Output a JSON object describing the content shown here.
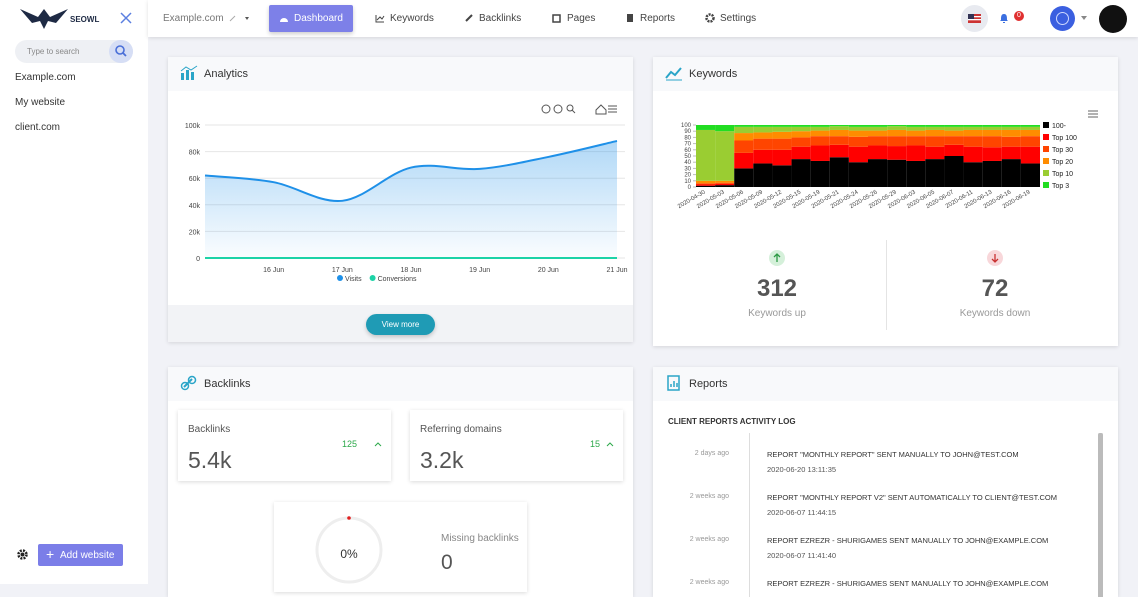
{
  "sidebar": {
    "brand": "SEOWL",
    "search_placeholder": "Type to search",
    "sites": [
      "Example.com",
      "My website",
      "client.com"
    ],
    "add_button": "Add website"
  },
  "nav": {
    "site": "Example.com",
    "items": [
      "Dashboard",
      "Keywords",
      "Backlinks",
      "Pages",
      "Reports",
      "Settings"
    ],
    "notifications": 0
  },
  "chart_data": [
    {
      "type": "line",
      "title": "Analytics",
      "categories": [
        null,
        "16 Jun",
        "17 Jun",
        "18 Jun",
        "19 Jun",
        "20 Jun",
        "21 Jun"
      ],
      "series": [
        {
          "name": "Visits",
          "color": "#1e90e8",
          "values": [
            62000,
            57000,
            43000,
            68000,
            67000,
            76000,
            88000
          ]
        },
        {
          "name": "Conversions",
          "color": "#1dd3a7",
          "values": [
            0,
            0,
            0,
            0,
            0,
            0,
            0
          ]
        }
      ],
      "ylim": [
        0,
        100000
      ],
      "yticks": [
        0,
        {
          "value": 20000,
          "label": "20k"
        },
        {
          "value": 40000,
          "label": "40k"
        },
        {
          "value": 60000,
          "label": "60k"
        },
        {
          "value": 80000,
          "label": "80k"
        },
        {
          "value": 100000,
          "label": "100k"
        }
      ],
      "grid": true,
      "legend": "bottom"
    },
    {
      "type": "bar",
      "stacked": true,
      "title": "Keywords",
      "categories": [
        "2020-04-30",
        "2020-05-03",
        "2020-05-06",
        "2020-05-09",
        "2020-05-12",
        "2020-05-15",
        "2020-05-19",
        "2020-05-21",
        "2020-05-24",
        "2020-05-26",
        "2020-05-29",
        "2020-06-03",
        "2020-06-05",
        "2020-06-07",
        "2020-06-11",
        "2020-06-13",
        "2020-06-16",
        "2020-06-19"
      ],
      "series": [
        {
          "name": "100-",
          "color": "#000000",
          "values": [
            2,
            3,
            30,
            38,
            35,
            45,
            42,
            48,
            40,
            45,
            44,
            42,
            45,
            50,
            40,
            42,
            45,
            38
          ]
        },
        {
          "name": "Top 100",
          "color": "#ff0000",
          "values": [
            2,
            2,
            25,
            22,
            25,
            20,
            25,
            20,
            25,
            22,
            22,
            25,
            20,
            18,
            25,
            22,
            20,
            27
          ]
        },
        {
          "name": "Top 30",
          "color": "#ff4500",
          "values": [
            2,
            2,
            20,
            18,
            18,
            15,
            15,
            14,
            16,
            15,
            16,
            15,
            17,
            14,
            17,
            18,
            16,
            17
          ]
        },
        {
          "name": "Top 20",
          "color": "#ff8c00",
          "values": [
            4,
            3,
            12,
            10,
            11,
            10,
            9,
            10,
            10,
            9,
            10,
            9,
            10,
            9,
            10,
            10,
            11,
            10
          ]
        },
        {
          "name": "Top 10",
          "color": "#9acd32",
          "values": [
            82,
            80,
            10,
            9,
            8,
            7,
            6,
            6,
            6,
            6,
            6,
            6,
            5,
            6,
            5,
            5,
            5,
            5
          ]
        },
        {
          "name": "Top 3",
          "color": "#22dd22",
          "values": [
            8,
            10,
            3,
            3,
            3,
            3,
            3,
            2,
            3,
            3,
            2,
            3,
            3,
            3,
            3,
            3,
            3,
            3
          ]
        }
      ],
      "ylim": [
        0,
        100
      ],
      "yticks": [
        0,
        10,
        20,
        30,
        40,
        50,
        60,
        70,
        80,
        90,
        100
      ],
      "legend": "right"
    }
  ],
  "analytics_footer": {
    "button": "View more"
  },
  "keywords_stats": {
    "up": {
      "value": 312,
      "label": "Keywords up"
    },
    "down": {
      "value": 72,
      "label": "Keywords down"
    }
  },
  "backlinks": {
    "title": "Backlinks",
    "stats": [
      {
        "label": "Backlinks",
        "value": "5.4k",
        "change": 125
      },
      {
        "label": "Referring domains",
        "value": "3.2k",
        "change": 15
      }
    ],
    "missing": {
      "percent": "0%",
      "label": "Missing backlinks",
      "value": 0
    }
  },
  "reports": {
    "title": "Reports",
    "subtitle": "CLIENT REPORTS ACTIVITY LOG",
    "entries": [
      {
        "time": "2 days ago",
        "text": "REPORT \"MONTHLY REPORT\" SENT MANUALLY TO JOHN@TEST.COM",
        "date": "2020-06-20 13:11:35"
      },
      {
        "time": "2 weeks ago",
        "text": "REPORT \"MONTHLY REPORT V2\" SENT AUTOMATICALLY TO CLIENT@TEST.COM",
        "date": "2020-06-07 11:44:15"
      },
      {
        "time": "2 weeks ago",
        "text": "REPORT EZREZR - SHURIGAMES SENT MANUALLY TO JOHN@EXAMPLE.COM",
        "date": "2020-06-07 11:41:40"
      },
      {
        "time": "2 weeks ago",
        "text": "REPORT EZREZR - SHURIGAMES SENT MANUALLY TO JOHN@EXAMPLE.COM"
      }
    ]
  }
}
